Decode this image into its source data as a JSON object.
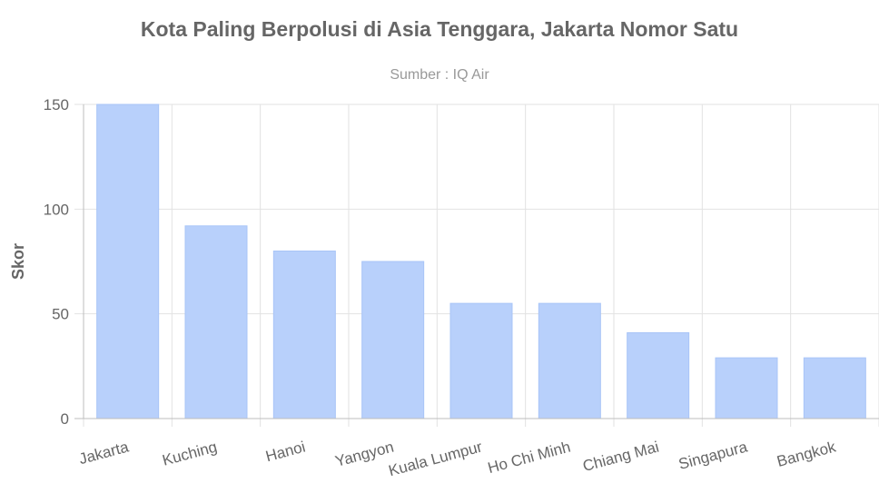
{
  "chart_data": {
    "type": "bar",
    "title": "Kota Paling Berpolusi di Asia Tenggara, Jakarta Nomor Satu",
    "subtitle": "Sumber : IQ Air",
    "xlabel": "",
    "ylabel": "Skor",
    "ylim": [
      0,
      150
    ],
    "yticks": [
      0,
      50,
      100,
      150
    ],
    "ytick_labels": [
      "0",
      "50",
      "100",
      "150"
    ],
    "grid": true,
    "legend": "none",
    "categories": [
      "Jakarta",
      "Kuching",
      "Hanoi",
      "Yangyon",
      "Kuala Lumpur",
      "Ho Chi Minh",
      "Chiang Mai",
      "Singapura",
      "Bangkok"
    ],
    "values": [
      150,
      92,
      80,
      75,
      55,
      55,
      41,
      29,
      29
    ],
    "colors": {
      "bar_fill": "#b8d0fb",
      "bar_stroke": "#a9c5f7"
    }
  }
}
